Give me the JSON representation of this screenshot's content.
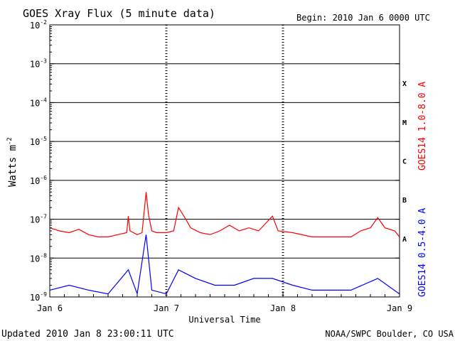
{
  "chart_data": {
    "type": "line",
    "title": "GOES Xray Flux (5 minute data)",
    "begin_label": "Begin:  2010 Jan 6 0000 UTC",
    "xlabel": "Universal Time",
    "ylabel": "Watts m",
    "ylabel_sup": "-2",
    "y_scale": "log",
    "ylim": [
      1e-09,
      0.01
    ],
    "xlim_days": [
      "2010-01-06",
      "2010-01-09"
    ],
    "y_ticks": [
      {
        "base": "10",
        "exp": "-9"
      },
      {
        "base": "10",
        "exp": "-8"
      },
      {
        "base": "10",
        "exp": "-7"
      },
      {
        "base": "10",
        "exp": "-6"
      },
      {
        "base": "10",
        "exp": "-5"
      },
      {
        "base": "10",
        "exp": "-4"
      },
      {
        "base": "10",
        "exp": "-3"
      },
      {
        "base": "10",
        "exp": "-2"
      }
    ],
    "x_ticks": [
      "Jan 6",
      "Jan 7",
      "Jan 8",
      "Jan 9"
    ],
    "flare_classes": [
      "A",
      "B",
      "C",
      "M",
      "X"
    ],
    "grid": true,
    "series": [
      {
        "name": "GOES14 1.0-8.0 A",
        "color": "#ff0000",
        "x": [
          "2010-01-06 00:00",
          "2010-01-06 02:00",
          "2010-01-06 04:00",
          "2010-01-06 06:00",
          "2010-01-06 08:00",
          "2010-01-06 10:00",
          "2010-01-06 12:00",
          "2010-01-06 14:00",
          "2010-01-06 15:50",
          "2010-01-06 16:10",
          "2010-01-06 16:30",
          "2010-01-06 18:00",
          "2010-01-06 19:00",
          "2010-01-06 19:50",
          "2010-01-06 20:20",
          "2010-01-06 21:00",
          "2010-01-06 22:00",
          "2010-01-07 00:00",
          "2010-01-07 01:30",
          "2010-01-07 02:30",
          "2010-01-07 04:00",
          "2010-01-07 05:00",
          "2010-01-07 07:00",
          "2010-01-07 09:00",
          "2010-01-07 11:00",
          "2010-01-07 13:00",
          "2010-01-07 15:00",
          "2010-01-07 17:00",
          "2010-01-07 19:00",
          "2010-01-07 21:50",
          "2010-01-07 23:00",
          "2010-01-08 02:00",
          "2010-01-08 06:00",
          "2010-01-08 10:00",
          "2010-01-08 14:00",
          "2010-01-08 16:00",
          "2010-01-08 18:00",
          "2010-01-08 19:30",
          "2010-01-08 21:00",
          "2010-01-08 23:00",
          "2010-01-08 24:00"
        ],
        "values": [
          6e-08,
          5e-08,
          4.5e-08,
          5.5e-08,
          4e-08,
          3.5e-08,
          3.5e-08,
          4e-08,
          4.5e-08,
          1.2e-07,
          5e-08,
          4e-08,
          4.5e-08,
          5e-07,
          1.3e-07,
          5e-08,
          4.5e-08,
          4.5e-08,
          5e-08,
          2e-07,
          1e-07,
          6e-08,
          4.5e-08,
          4e-08,
          5e-08,
          7e-08,
          5e-08,
          6e-08,
          5e-08,
          1.2e-07,
          5e-08,
          4.5e-08,
          3.5e-08,
          3.5e-08,
          3.5e-08,
          5e-08,
          6e-08,
          1.1e-07,
          6e-08,
          5e-08,
          3.5e-08
        ]
      },
      {
        "name": "GOES14 0.5-4.0 A",
        "color": "#0000ff",
        "x": [
          "2010-01-06 00:00",
          "2010-01-06 04:00",
          "2010-01-06 08:00",
          "2010-01-06 12:00",
          "2010-01-06 16:10",
          "2010-01-06 18:00",
          "2010-01-06 19:50",
          "2010-01-06 21:00",
          "2010-01-07 00:00",
          "2010-01-07 02:30",
          "2010-01-07 06:00",
          "2010-01-07 10:00",
          "2010-01-07 14:00",
          "2010-01-07 18:00",
          "2010-01-07 21:50",
          "2010-01-08 02:00",
          "2010-01-08 06:00",
          "2010-01-08 10:00",
          "2010-01-08 14:00",
          "2010-01-08 19:30",
          "2010-01-08 24:00"
        ],
        "values": [
          1.5e-09,
          2e-09,
          1.5e-09,
          1.2e-09,
          5e-09,
          1.2e-09,
          4e-08,
          1.5e-09,
          1.2e-09,
          5e-09,
          3e-09,
          2e-09,
          2e-09,
          3e-09,
          3e-09,
          2e-09,
          1.5e-09,
          1.5e-09,
          1.5e-09,
          3e-09,
          1.2e-09
        ]
      }
    ]
  },
  "footer": {
    "updated": "Updated 2010 Jan  8 23:00:11 UTC",
    "source": "NOAA/SWPC Boulder, CO USA"
  }
}
